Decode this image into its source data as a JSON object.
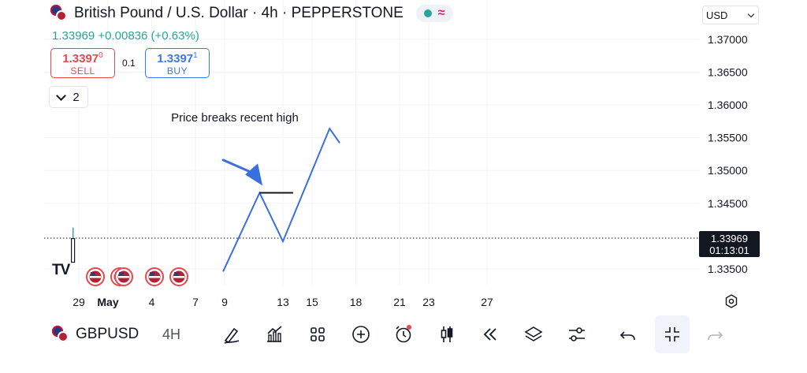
{
  "header": {
    "symbol_title": "British Pound / U.S. Dollar · 4h · PEPPERSTONE",
    "price_line": "1.33969 +0.00836 (+0.63%)",
    "status_wave_glyph": "≈"
  },
  "order_panel": {
    "sell_price_main": "1.3397",
    "sell_price_sup": "0",
    "sell_label": "SELL",
    "spread": "0.1",
    "buy_price_main": "1.3397",
    "buy_price_sup": "1",
    "buy_label": "BUY"
  },
  "indicators_toggle": {
    "count": "2"
  },
  "currency_select": {
    "value": "USD"
  },
  "last_price_tag": {
    "price": "1.33969",
    "countdown": "01:13:01"
  },
  "toolbar": {
    "symbol": "GBPUSD",
    "interval": "4H",
    "icons": [
      "brush-icon",
      "indicators-icon",
      "templates-icon",
      "add-icon",
      "alert-icon",
      "chart-type-icon",
      "replay-icon",
      "layers-icon",
      "settings-sliders-icon",
      "undo-icon",
      "collapse-icon",
      "redo-icon"
    ]
  },
  "colors": {
    "up": "#26a69a",
    "sell": "#e5484d",
    "buy": "#3b78e7",
    "drawing": "#3b6fe0",
    "alert_dot": "#e5484d"
  },
  "chart_data": {
    "type": "line",
    "symbol": "GBPUSD",
    "interval": "4h",
    "title": "British Pound / U.S. Dollar · 4h · PEPPERSTONE",
    "x_tick_labels": [
      "29",
      "May",
      "4",
      "7",
      "9",
      "13",
      "15",
      "18",
      "21",
      "23",
      "27"
    ],
    "x_tick_days": [
      29,
      31,
      34,
      37,
      39,
      43,
      45,
      48,
      51,
      53,
      57
    ],
    "y_tick_labels": [
      "1.37000",
      "1.36500",
      "1.36000",
      "1.35500",
      "1.35000",
      "1.34500",
      "1.33500"
    ],
    "y_tick_values": [
      1.37,
      1.365,
      1.36,
      1.355,
      1.35,
      1.345,
      1.335
    ],
    "ylim": [
      1.3332,
      1.3745
    ],
    "last_price": 1.33969,
    "grid": true,
    "event_markers": {
      "count": 5,
      "flag": "US"
    },
    "candles": [
      {
        "day": 28.6,
        "open": 1.3395,
        "close": 1.3395,
        "high": 1.3413,
        "low": 1.3378
      }
    ],
    "drawings": {
      "projection_line": [
        [
          38.9,
          1.3346
        ],
        [
          41.4,
          1.3466
        ],
        [
          43.0,
          1.3392
        ],
        [
          46.2,
          1.3564
        ],
        [
          46.9,
          1.3542
        ]
      ],
      "recent_high_line": {
        "day_start": 41.4,
        "day_end": 43.7,
        "price": 1.3466
      },
      "annotation_text": "Price breaks recent high",
      "annotation_arrow": {
        "from": [
          38.9,
          1.3516
        ],
        "to": [
          41.6,
          1.3477
        ]
      }
    }
  }
}
